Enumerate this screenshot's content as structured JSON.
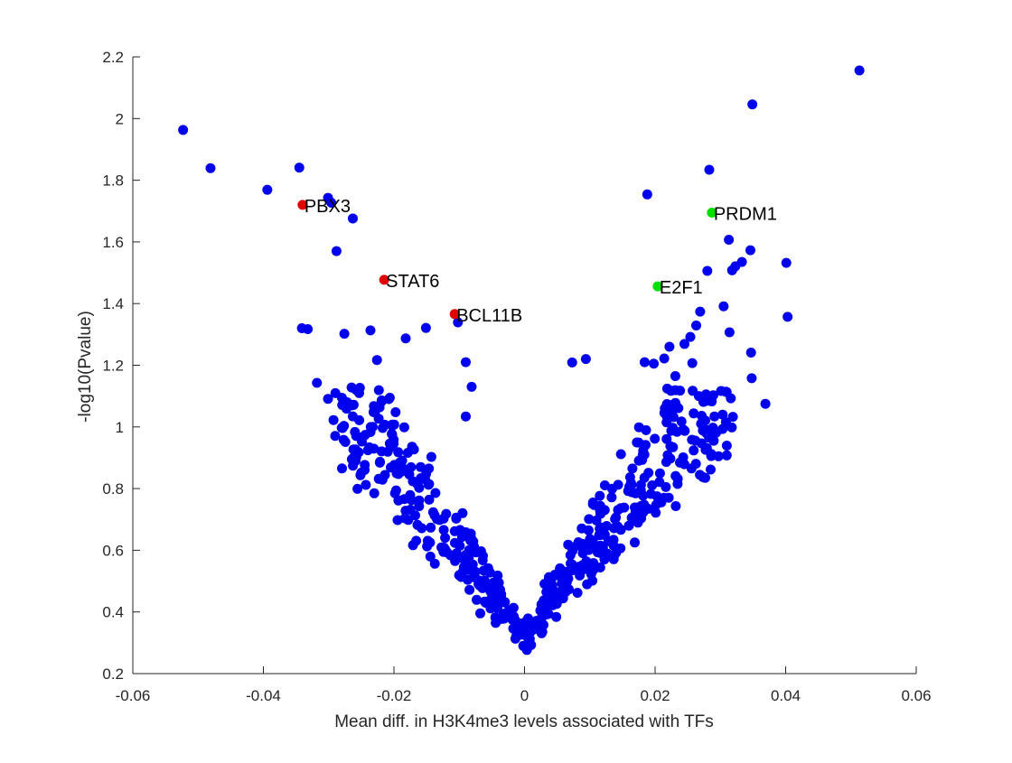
{
  "chart_data": {
    "type": "scatter",
    "title": "",
    "xlabel": "Mean diff. in H3K4me3 levels associated with TFs",
    "ylabel": "-log10(Pvalue)",
    "xlim": [
      -0.06,
      0.06
    ],
    "ylim": [
      0.2,
      2.2
    ],
    "xticks": [
      -0.06,
      -0.04,
      -0.02,
      0,
      0.02,
      0.04,
      0.06
    ],
    "xtick_labels": [
      "-0.06",
      "-0.04",
      "-0.02",
      "0",
      "0.02",
      "0.04",
      "0.06"
    ],
    "yticks": [
      0.2,
      0.4,
      0.6,
      0.8,
      1,
      1.2,
      1.4,
      1.6,
      1.8,
      2,
      2.2
    ],
    "ytick_labels": [
      "0.2",
      "0.4",
      "0.6",
      "0.8",
      "1",
      "1.2",
      "1.4",
      "1.6",
      "1.8",
      "2",
      "2.2"
    ],
    "grid": false,
    "colors": {
      "background": "#ffffff",
      "background_points": "#0000ee",
      "highlight_negative": "#e00000",
      "highlight_positive": "#00e000",
      "axis": "#262626"
    },
    "highlighted": [
      {
        "name": "PBX3",
        "x": -0.034,
        "y": 1.72,
        "color": "#e00000"
      },
      {
        "name": "STAT6",
        "x": -0.0215,
        "y": 1.477,
        "color": "#e00000"
      },
      {
        "name": "BCL11B",
        "x": -0.0107,
        "y": 1.366,
        "color": "#e00000"
      },
      {
        "name": "PRDM1",
        "x": 0.0287,
        "y": 1.695,
        "color": "#00e000"
      },
      {
        "name": "E2F1",
        "x": 0.0204,
        "y": 1.456,
        "color": "#00e000"
      }
    ],
    "outlier_points": [
      [
        -0.0523,
        1.963
      ],
      [
        -0.0481,
        1.839
      ],
      [
        -0.0394,
        1.769
      ],
      [
        -0.0345,
        1.841
      ],
      [
        -0.0301,
        1.743
      ],
      [
        -0.0296,
        1.727
      ],
      [
        -0.0263,
        1.676
      ],
      [
        -0.0288,
        1.57
      ],
      [
        -0.0332,
        1.317
      ],
      [
        -0.0341,
        1.32
      ],
      [
        -0.0276,
        1.302
      ],
      [
        -0.0236,
        1.313
      ],
      [
        -0.0226,
        1.217
      ],
      [
        -0.0182,
        1.287
      ],
      [
        -0.0151,
        1.321
      ],
      [
        -0.0102,
        1.339
      ],
      [
        -0.009,
        1.21
      ],
      [
        -0.0081,
        1.13
      ],
      [
        -0.009,
        1.034
      ],
      [
        -0.0318,
        1.143
      ],
      [
        -0.0301,
        1.091
      ],
      [
        -0.029,
        0.971
      ],
      [
        -0.0277,
        0.958
      ],
      [
        -0.0262,
        0.9
      ],
      [
        0.0513,
        2.156
      ],
      [
        0.0349,
        2.046
      ],
      [
        0.0283,
        1.834
      ],
      [
        0.0188,
        1.754
      ],
      [
        0.0313,
        1.607
      ],
      [
        0.0346,
        1.573
      ],
      [
        0.0333,
        1.535
      ],
      [
        0.0323,
        1.521
      ],
      [
        0.0318,
        1.508
      ],
      [
        0.028,
        1.506
      ],
      [
        0.0401,
        1.532
      ],
      [
        0.0403,
        1.357
      ],
      [
        0.0305,
        1.391
      ],
      [
        0.0314,
        1.307
      ],
      [
        0.0347,
        1.241
      ],
      [
        0.0348,
        1.158
      ],
      [
        0.0369,
        1.075
      ],
      [
        0.0291,
        1.034
      ],
      [
        0.0274,
        1.081
      ],
      [
        0.0269,
        1.374
      ],
      [
        0.0263,
        1.329
      ],
      [
        0.0254,
        1.292
      ],
      [
        0.0245,
        1.269
      ],
      [
        0.0222,
        1.26
      ],
      [
        0.0214,
        1.222
      ],
      [
        0.0257,
        1.207
      ],
      [
        0.0231,
        1.165
      ],
      [
        0.0184,
        1.21
      ],
      [
        0.0198,
        1.205
      ],
      [
        0.0094,
        1.22
      ],
      [
        0.0073,
        1.209
      ]
    ]
  }
}
